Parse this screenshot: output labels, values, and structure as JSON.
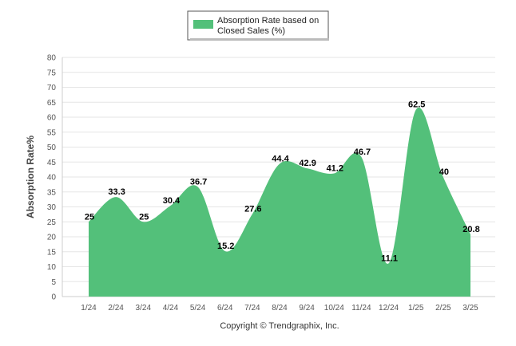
{
  "chart_data": {
    "type": "area",
    "categories": [
      "1/24",
      "2/24",
      "3/24",
      "4/24",
      "5/24",
      "6/24",
      "7/24",
      "8/24",
      "9/24",
      "10/24",
      "11/24",
      "12/24",
      "1/25",
      "2/25",
      "3/25"
    ],
    "series": [
      {
        "name": "Absorption Rate based on Closed Sales (%)",
        "values": [
          25,
          33.3,
          25,
          30.4,
          36.7,
          15.2,
          27.6,
          44.4,
          42.9,
          41.2,
          46.7,
          11.1,
          62.5,
          40,
          20.8
        ],
        "labels": [
          "25",
          "33.3",
          "25",
          "30.4",
          "36.7",
          "15.2",
          "27.6",
          "44.4",
          "42.9",
          "41.2",
          "46.7",
          "11.1",
          "62.5",
          "40",
          "20.8"
        ]
      }
    ],
    "ylabel": "Absorption Rate%",
    "xlabel": "",
    "ylim": [
      0,
      80
    ],
    "yticks": [
      "0",
      "5",
      "10",
      "15",
      "20",
      "25",
      "30",
      "35",
      "40",
      "45",
      "50",
      "55",
      "60",
      "65",
      "70",
      "75",
      "80"
    ],
    "grid": true,
    "legend_position": "top-center",
    "colors": {
      "area": "#53c07a",
      "legend_border": "#555555"
    }
  },
  "legend": {
    "line1": "Absorption Rate based on",
    "line2": "Closed Sales (%)"
  },
  "footer": {
    "copyright": "Copyright © Trendgraphix, Inc."
  }
}
